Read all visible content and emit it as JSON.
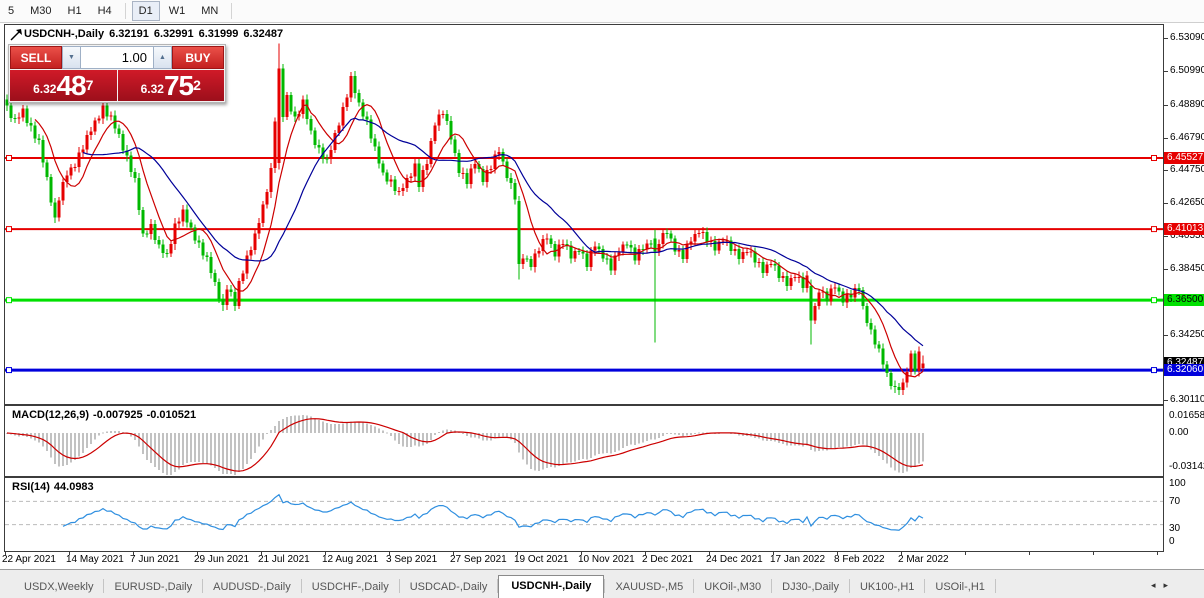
{
  "toolbar": {
    "timeframes": [
      "5",
      "M30",
      "H1",
      "H4",
      "D1",
      "W1",
      "MN"
    ],
    "active": "D1"
  },
  "chart": {
    "symbol_label": "USDCNH-,Daily",
    "open": "6.32191",
    "high": "6.32991",
    "low": "6.31999",
    "close": "6.32487"
  },
  "trade_panel": {
    "sell_label": "SELL",
    "buy_label": "BUY",
    "volume": "1.00",
    "bid": {
      "base": "6.32",
      "pips": "48",
      "sup": "7"
    },
    "ask": {
      "base": "6.32",
      "pips": "75",
      "sup": "2"
    }
  },
  "macd": {
    "name": "MACD(12,26,9)",
    "value_main": "-0.007925",
    "value_signal": "-0.010521",
    "scale_labels": [
      "0.01658",
      "0.00",
      "-0.03142"
    ]
  },
  "rsi": {
    "name": "RSI(14)",
    "value": "44.0983",
    "scale_labels": [
      "100",
      "70",
      "30",
      "0"
    ]
  },
  "tabs": {
    "items": [
      {
        "label": "USDX,Weekly",
        "active": false
      },
      {
        "label": "EURUSD-,Daily",
        "active": false
      },
      {
        "label": "AUDUSD-,Daily",
        "active": false
      },
      {
        "label": "USDCHF-,Daily",
        "active": false
      },
      {
        "label": "USDCAD-,Daily",
        "active": false
      },
      {
        "label": "USDCNH-,Daily",
        "active": true
      },
      {
        "label": "XAUUSD-,M5",
        "active": false
      },
      {
        "label": "UKOil-,M30",
        "active": false
      },
      {
        "label": "DJ30-,Daily",
        "active": false
      },
      {
        "label": "UK100-,H1",
        "active": false
      },
      {
        "label": "USOil-,H1",
        "active": false
      }
    ],
    "scroll_left": "◂",
    "scroll_right": "▸"
  },
  "chart_data": {
    "type": "candlestick",
    "title": "USDCNH-,Daily",
    "current_bar": {
      "open": 6.32191,
      "high": 6.32991,
      "low": 6.31999,
      "close": 6.32487
    },
    "bid": 6.32487,
    "ask": 6.32752,
    "up_color": "#e60000",
    "down_color": "#00b800",
    "ylim": [
      6.3,
      6.54
    ],
    "price_ticks": [
      {
        "label": "6.53090",
        "price": 6.5309
      },
      {
        "label": "6.50990",
        "price": 6.5099
      },
      {
        "label": "6.48890",
        "price": 6.4889
      },
      {
        "label": "6.46790",
        "price": 6.4679
      },
      {
        "label": "6.44750",
        "price": 6.4475
      },
      {
        "label": "6.42650",
        "price": 6.4265
      },
      {
        "label": "6.40550",
        "price": 6.4055
      },
      {
        "label": "6.38450",
        "price": 6.3845
      },
      {
        "label": "6.34250",
        "price": 6.3425
      },
      {
        "label": "6.30110",
        "price": 6.3011
      }
    ],
    "levels": [
      {
        "label": "6.45527",
        "price": 6.45527,
        "color": "#e60000",
        "text_color": "#ffffff",
        "width": 2
      },
      {
        "label": "6.41013",
        "price": 6.41013,
        "color": "#e60000",
        "text_color": "#ffffff",
        "width": 2
      },
      {
        "label": "6.36500",
        "price": 6.365,
        "color": "#00e000",
        "text_color": "#000000",
        "width": 3
      },
      {
        "label": "6.32060",
        "price": 6.3206,
        "color": "#0000dc",
        "text_color": "#ffffff",
        "width": 3
      }
    ],
    "last_price_badge": {
      "label": "6.32487",
      "price": 6.32487,
      "bg": "#000000",
      "text_color": "#ffffff"
    },
    "date_ticks": [
      {
        "day": 0,
        "label": "22 Apr 2021"
      },
      {
        "day": 16,
        "label": "14 May 2021"
      },
      {
        "day": 32,
        "label": "7 Jun 2021"
      },
      {
        "day": 48,
        "label": "29 Jun 2021"
      },
      {
        "day": 64,
        "label": "21 Jul 2021"
      },
      {
        "day": 80,
        "label": "12 Aug 2021"
      },
      {
        "day": 96,
        "label": "3 Sep 2021"
      },
      {
        "day": 112,
        "label": "27 Sep 2021"
      },
      {
        "day": 128,
        "label": "19 Oct 2021"
      },
      {
        "day": 144,
        "label": "10 Nov 2021"
      },
      {
        "day": 160,
        "label": "2 Dec 2021"
      },
      {
        "day": 176,
        "label": "24 Dec 2021"
      },
      {
        "day": 192,
        "label": "17 Jan 2022"
      },
      {
        "day": 208,
        "label": "8 Feb 2022"
      },
      {
        "day": 224,
        "label": "2 Mar 2022"
      }
    ],
    "num_days": 230,
    "close_anchors": [
      [
        0,
        6.487
      ],
      [
        2,
        6.478
      ],
      [
        4,
        6.486
      ],
      [
        6,
        6.474
      ],
      [
        8,
        6.464
      ],
      [
        10,
        6.442
      ],
      [
        12,
        6.416
      ],
      [
        13,
        6.43
      ],
      [
        15,
        6.445
      ],
      [
        17,
        6.452
      ],
      [
        19,
        6.462
      ],
      [
        22,
        6.478
      ],
      [
        24,
        6.487
      ],
      [
        26,
        6.48
      ],
      [
        28,
        6.47
      ],
      [
        30,
        6.455
      ],
      [
        32,
        6.44
      ],
      [
        34,
        6.406
      ],
      [
        36,
        6.412
      ],
      [
        38,
        6.398
      ],
      [
        40,
        6.394
      ],
      [
        42,
        6.412
      ],
      [
        44,
        6.42
      ],
      [
        46,
        6.41
      ],
      [
        48,
        6.4
      ],
      [
        50,
        6.39
      ],
      [
        52,
        6.376
      ],
      [
        54,
        6.36
      ],
      [
        55,
        6.373
      ],
      [
        57,
        6.362
      ],
      [
        58,
        6.376
      ],
      [
        60,
        6.392
      ],
      [
        62,
        6.405
      ],
      [
        64,
        6.425
      ],
      [
        66,
        6.447
      ],
      [
        68,
        6.512
      ],
      [
        69,
        6.482
      ],
      [
        70,
        6.494
      ],
      [
        72,
        6.48
      ],
      [
        74,
        6.49
      ],
      [
        76,
        6.472
      ],
      [
        78,
        6.46
      ],
      [
        80,
        6.452
      ],
      [
        82,
        6.47
      ],
      [
        84,
        6.486
      ],
      [
        86,
        6.505
      ],
      [
        88,
        6.49
      ],
      [
        90,
        6.478
      ],
      [
        92,
        6.46
      ],
      [
        94,
        6.445
      ],
      [
        96,
        6.44
      ],
      [
        98,
        6.432
      ],
      [
        100,
        6.442
      ],
      [
        102,
        6.45
      ],
      [
        103,
        6.438
      ],
      [
        105,
        6.452
      ],
      [
        107,
        6.478
      ],
      [
        109,
        6.485
      ],
      [
        111,
        6.468
      ],
      [
        113,
        6.448
      ],
      [
        115,
        6.44
      ],
      [
        117,
        6.452
      ],
      [
        119,
        6.442
      ],
      [
        121,
        6.45
      ],
      [
        123,
        6.46
      ],
      [
        125,
        6.445
      ],
      [
        127,
        6.43
      ],
      [
        128,
        6.388
      ],
      [
        129,
        6.392
      ],
      [
        131,
        6.388
      ],
      [
        133,
        6.398
      ],
      [
        135,
        6.405
      ],
      [
        137,
        6.395
      ],
      [
        139,
        6.402
      ],
      [
        141,
        6.392
      ],
      [
        143,
        6.398
      ],
      [
        145,
        6.388
      ],
      [
        147,
        6.4
      ],
      [
        149,
        6.394
      ],
      [
        151,
        6.385
      ],
      [
        153,
        6.396
      ],
      [
        155,
        6.402
      ],
      [
        157,
        6.392
      ],
      [
        159,
        6.398
      ],
      [
        161,
        6.403
      ],
      [
        162,
        6.396
      ],
      [
        163,
        6.402
      ],
      [
        165,
        6.408
      ],
      [
        167,
        6.398
      ],
      [
        169,
        6.393
      ],
      [
        171,
        6.403
      ],
      [
        173,
        6.41
      ],
      [
        175,
        6.403
      ],
      [
        177,
        6.397
      ],
      [
        179,
        6.405
      ],
      [
        181,
        6.398
      ],
      [
        183,
        6.392
      ],
      [
        185,
        6.398
      ],
      [
        187,
        6.39
      ],
      [
        189,
        6.383
      ],
      [
        191,
        6.39
      ],
      [
        193,
        6.381
      ],
      [
        195,
        6.375
      ],
      [
        197,
        6.382
      ],
      [
        199,
        6.374
      ],
      [
        200,
        6.378
      ],
      [
        201,
        6.352
      ],
      [
        202,
        6.36
      ],
      [
        203,
        6.372
      ],
      [
        205,
        6.366
      ],
      [
        207,
        6.374
      ],
      [
        209,
        6.366
      ],
      [
        211,
        6.368
      ],
      [
        213,
        6.372
      ],
      [
        214,
        6.36
      ],
      [
        216,
        6.345
      ],
      [
        218,
        6.332
      ],
      [
        220,
        6.318
      ],
      [
        222,
        6.308
      ],
      [
        224,
        6.31
      ],
      [
        225,
        6.32
      ],
      [
        226,
        6.33
      ],
      [
        227,
        6.322
      ],
      [
        228,
        6.331
      ],
      [
        229,
        6.32487
      ]
    ],
    "special_bars": {
      "68": {
        "o": 6.452,
        "h": 6.528,
        "l": 6.448,
        "c": 6.512
      },
      "128": {
        "o": 6.428,
        "h": 6.431,
        "l": 6.378,
        "c": 6.388
      },
      "162": {
        "o": 6.404,
        "h": 6.41,
        "l": 6.338,
        "c": 6.396
      },
      "201": {
        "o": 6.374,
        "h": 6.378,
        "l": 6.337,
        "c": 6.352
      },
      "229": {
        "o": 6.32191,
        "h": 6.32991,
        "l": 6.31999,
        "c": 6.32487
      }
    },
    "ma_fast": {
      "period": 8,
      "color": "#cc0000"
    },
    "ma_slow": {
      "period": 20,
      "color": "#000099"
    },
    "macd": {
      "fast": 12,
      "slow": 26,
      "signal": 9,
      "last_main": -0.007925,
      "last_signal": -0.010521,
      "hist_color": "#c2c2c2",
      "signal_color": "#cc0000",
      "scale_max": 0.01658,
      "scale_min": -0.03142
    },
    "rsi": {
      "period": 14,
      "last_value": 44.0983,
      "color": "#2f8fe0",
      "levels": [
        70,
        30
      ]
    }
  }
}
